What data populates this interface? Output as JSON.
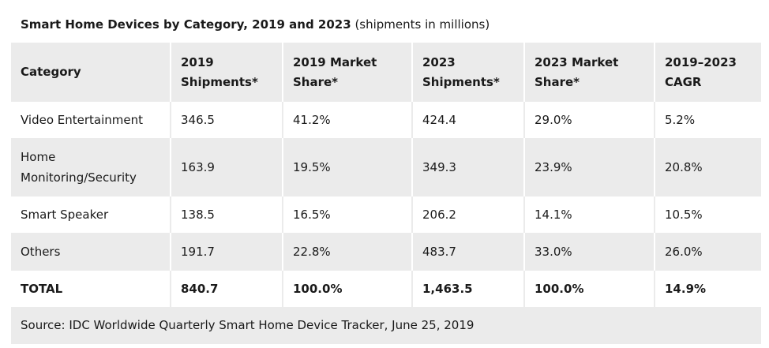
{
  "chart_data": {
    "type": "table",
    "title": "Smart Home Devices by Category, 2019 and 2023",
    "subtitle": "(shipments in millions)",
    "columns": [
      "Category",
      "2019 Shipments*",
      "2019 Market Share*",
      "2023 Shipments*",
      "2023 Market Share*",
      "2019–2023 CAGR"
    ],
    "rows": [
      [
        "Video Entertainment",
        "346.5",
        "41.2%",
        "424.4",
        "29.0%",
        "5.2%"
      ],
      [
        "Home Monitoring/Security",
        "163.9",
        "19.5%",
        "349.3",
        "23.9%",
        "20.8%"
      ],
      [
        "Smart Speaker",
        "138.5",
        "16.5%",
        "206.2",
        "14.1%",
        "10.5%"
      ],
      [
        "Others",
        "191.7",
        "22.8%",
        "483.7",
        "33.0%",
        "26.0%"
      ],
      [
        "TOTAL",
        "840.7",
        "100.0%",
        "1,463.5",
        "100.0%",
        "14.9%"
      ]
    ],
    "source": "Source: IDC Worldwide Quarterly Smart Home Device Tracker, June 25, 2019"
  },
  "colors": {
    "stripe": "#ebebeb",
    "background": "#ffffff",
    "text": "#1a1a1a"
  }
}
